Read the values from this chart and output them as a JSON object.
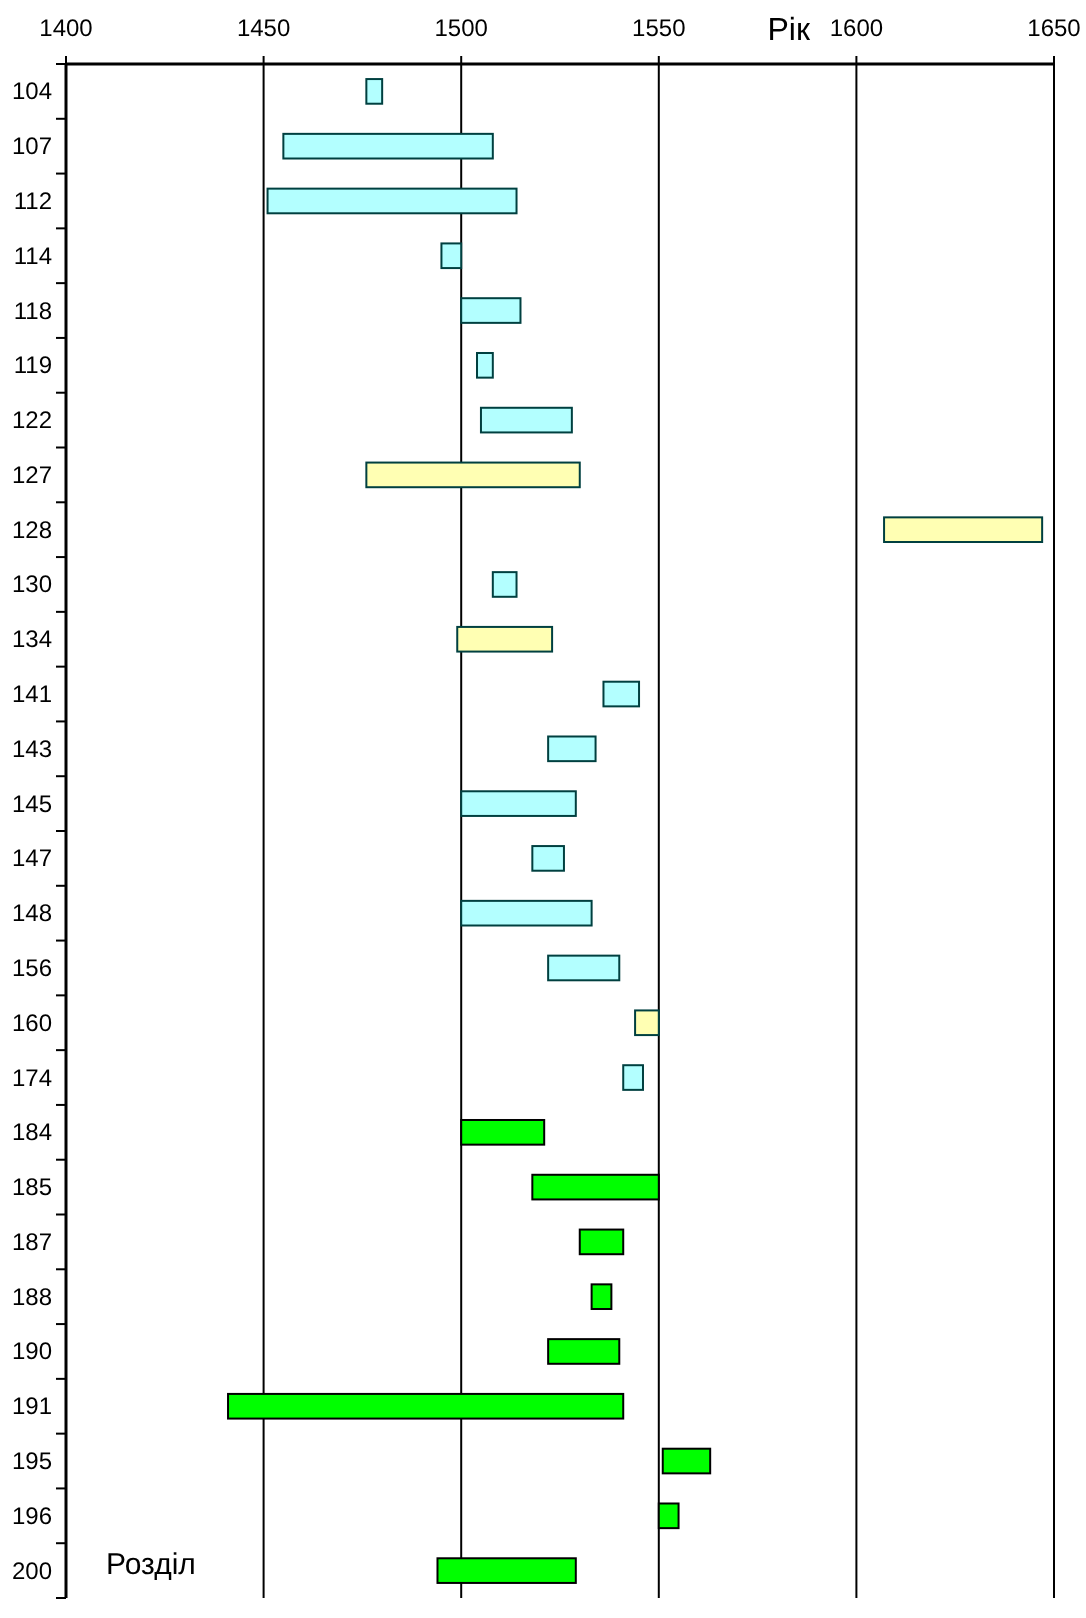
{
  "chart_data": {
    "type": "bar",
    "orientation": "horizontal",
    "xlabel": "Рік",
    "ylabel": "Розділ",
    "categories": [
      "104",
      "107",
      "112",
      "114",
      "118",
      "119",
      "122",
      "127",
      "128",
      "130",
      "134",
      "141",
      "143",
      "145",
      "147",
      "148",
      "156",
      "160",
      "174",
      "184",
      "185",
      "187",
      "188",
      "190",
      "191",
      "195",
      "196",
      "200"
    ],
    "base": [
      1476,
      1455,
      1451,
      1495,
      1500,
      1504,
      1505,
      1476,
      1607,
      1508,
      1499,
      1536,
      1522,
      1500,
      1518,
      1500,
      1522,
      1544,
      1541,
      1500,
      1518,
      1530,
      1533,
      1522,
      1441,
      1551,
      1550,
      1494
    ],
    "values": [
      4,
      53,
      63,
      5,
      15,
      4,
      23,
      54,
      40,
      6,
      24,
      9,
      12,
      29,
      8,
      33,
      18,
      6,
      5,
      21,
      32,
      11,
      5,
      18,
      100,
      12,
      5,
      35
    ],
    "colors": [
      "#b3ffff",
      "#b3ffff",
      "#b3ffff",
      "#b3ffff",
      "#b3ffff",
      "#b3ffff",
      "#b3ffff",
      "#ffffb3",
      "#ffffb3",
      "#b3ffff",
      "#ffffb3",
      "#b3ffff",
      "#b3ffff",
      "#b3ffff",
      "#b3ffff",
      "#b3ffff",
      "#b3ffff",
      "#ffffb3",
      "#b3ffff",
      "#00ff00",
      "#00ff00",
      "#00ff00",
      "#00ff00",
      "#00ff00",
      "#00ff00",
      "#00ff00",
      "#00ff00",
      "#00ff00"
    ],
    "xlim": [
      1400,
      1650
    ],
    "xticks": [
      1400,
      1450,
      1500,
      1550,
      1600,
      1650
    ],
    "grid": "x"
  }
}
